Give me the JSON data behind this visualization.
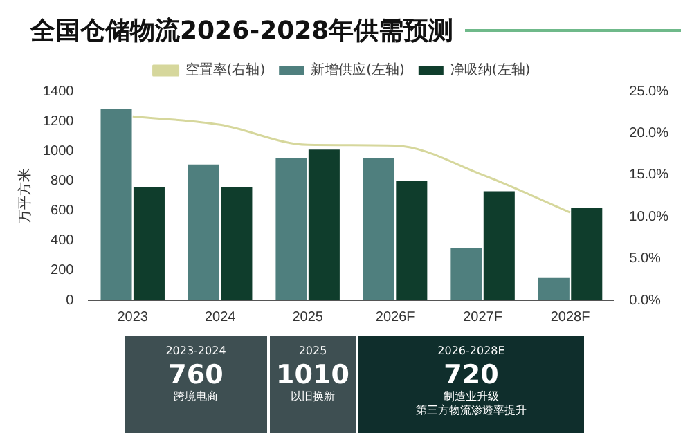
{
  "chart_data": [
    {
      "type": "bar",
      "title": "全国仓储物流2026-2028年供需预测",
      "ylabel": "万平方米",
      "categories": [
        "2023",
        "2024",
        "2025",
        "2026F",
        "2027F",
        "2028F"
      ],
      "ylim": [
        0,
        1400
      ],
      "yticks": [
        0,
        200,
        400,
        600,
        800,
        1000,
        1200,
        1400
      ],
      "y2lim": [
        0,
        25
      ],
      "y2ticks": [
        {
          "value": 0,
          "label": "0.0%"
        },
        {
          "value": 5,
          "label": "5.0%"
        },
        {
          "value": 10,
          "label": "10.0%"
        },
        {
          "value": 15,
          "label": "15.0%"
        },
        {
          "value": 20,
          "label": "20.0%"
        },
        {
          "value": 25,
          "label": "25.0%"
        }
      ],
      "grid": false,
      "legend": "top",
      "marker": "none",
      "series": [
        {
          "name": "新增供应(左轴)",
          "color": "#4f7f7e",
          "values": [
            1280,
            910,
            950,
            950,
            350,
            150
          ]
        },
        {
          "name": "净吸纳(左轴)",
          "color": "#0f3d2c",
          "values": [
            760,
            760,
            1010,
            800,
            730,
            620
          ]
        },
        {
          "name": "空置率(右轴)",
          "color": "#d6d79c",
          "type": "line",
          "axis": "y2",
          "values": [
            22,
            21,
            18.6,
            18.5,
            15,
            10.5
          ]
        }
      ]
    },
    {
      "type": "other",
      "title": "2023-2024",
      "subtitle": "760",
      "annotations": [
        "跨境电商"
      ]
    },
    {
      "type": "other",
      "title": "2025",
      "subtitle": "1010",
      "annotations": [
        "以旧换新"
      ]
    },
    {
      "type": "other",
      "title": "2026-2028E",
      "subtitle": "720",
      "annotations": [
        "制造业升级",
        "第三方物流渗透率提升"
      ]
    }
  ]
}
